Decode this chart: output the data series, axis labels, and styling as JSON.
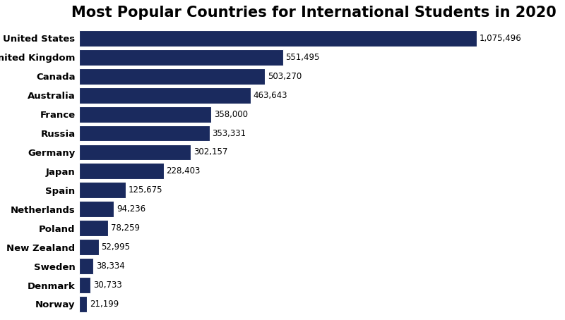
{
  "title": "Most Popular Countries for International Students in 2020",
  "categories": [
    "United States",
    "United Kingdom",
    "Canada",
    "Australia",
    "France",
    "Russia",
    "Germany",
    "Japan",
    "Spain",
    "Netherlands",
    "Poland",
    "New Zealand",
    "Sweden",
    "Denmark",
    "Norway"
  ],
  "values": [
    1075496,
    551495,
    503270,
    463643,
    358000,
    353331,
    302157,
    228403,
    125675,
    94236,
    78259,
    52995,
    38334,
    30733,
    21199
  ],
  "labels": [
    "1,075,496",
    "551,495",
    "503,270",
    "463,643",
    "358,000",
    "353,331",
    "302,157",
    "228,403",
    "125,675",
    "94,236",
    "78,259",
    "52,995",
    "38,334",
    "30,733",
    "21,199"
  ],
  "bar_color": "#1a2a5e",
  "background_color": "#ffffff",
  "title_fontsize": 15,
  "label_fontsize": 8.5,
  "tick_fontsize": 9.5,
  "bar_height": 0.85,
  "xlim_factor": 1.18
}
